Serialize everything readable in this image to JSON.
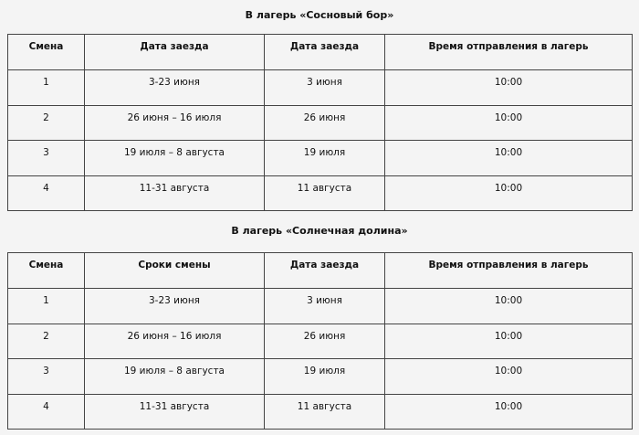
{
  "tables": [
    {
      "title": "В лагерь «Сосновый бор»",
      "headers": [
        "Смена",
        "Дата заезда",
        "Дата заезда",
        "Время отправления в лагерь"
      ],
      "rows": [
        [
          "1",
          "3-23 июня",
          "3 июня",
          "10:00"
        ],
        [
          "2",
          "26 июня – 16 июля",
          "26 июня",
          "10:00"
        ],
        [
          "3",
          "19 июля – 8 августа",
          "19 июля",
          "10:00"
        ],
        [
          "4",
          "11-31 августа",
          "11 августа",
          "10:00"
        ]
      ]
    },
    {
      "title": "В лагерь «Солнечная долина»",
      "headers": [
        "Смена",
        "Сроки смены",
        "Дата заезда",
        "Время отправления в лагерь"
      ],
      "rows": [
        [
          "1",
          "3-23 июня",
          "3 июня",
          "10:00"
        ],
        [
          "2",
          "26 июня – 16 июля",
          "26 июня",
          "10:00"
        ],
        [
          "3",
          "19 июля – 8 августа",
          "19 июля",
          "10:00"
        ],
        [
          "4",
          "11-31 августа",
          "11 августа",
          "10:00"
        ]
      ]
    }
  ]
}
